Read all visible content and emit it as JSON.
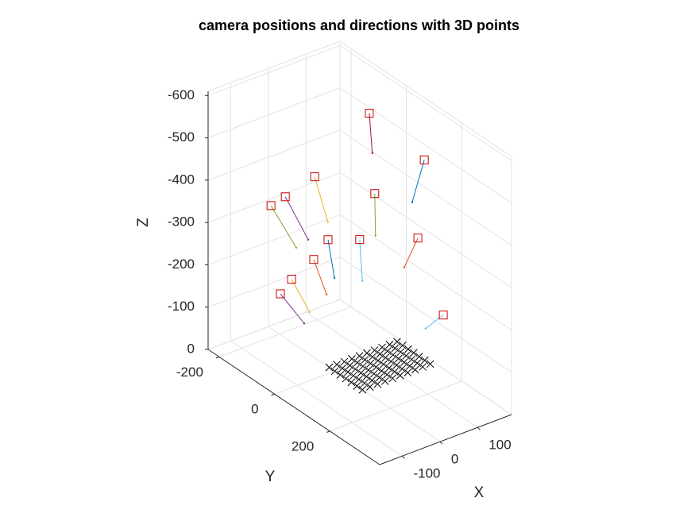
{
  "chart_data": {
    "type": "scatter3d",
    "title": "camera positions and directions with 3D points",
    "xlabel": "X",
    "ylabel": "Y",
    "zlabel": "Z",
    "xlim": [
      -160,
      190
    ],
    "ylim": [
      -240,
      380
    ],
    "zlim": [
      -610,
      0
    ],
    "z_reversed": true,
    "xticks": [
      -100,
      0,
      100
    ],
    "yticks": [
      -200,
      0,
      200
    ],
    "zticks": [
      -600,
      -500,
      -400,
      -300,
      -200,
      -100,
      0
    ],
    "grid": true,
    "camera_marker_color": "#d00000",
    "cameras": [
      {
        "color": "#A2142F",
        "position": [
          121,
          -40,
          -551
        ],
        "line_end": [
          129,
          -40,
          -454
        ]
      },
      {
        "color": "#0072BD",
        "position": [
          120,
          160,
          -529
        ],
        "line_end": [
          88,
          160,
          -440
        ]
      },
      {
        "color": "#EDB120",
        "position": [
          -24,
          -40,
          -450
        ],
        "line_end": [
          11,
          -40,
          -331
        ]
      },
      {
        "color": "#77AC30",
        "position": [
          62,
          60,
          -425
        ],
        "line_end": [
          64,
          60,
          -325
        ]
      },
      {
        "color": "#7E2F8E",
        "position": [
          -102,
          -40,
          -429
        ],
        "line_end": [
          -41,
          -40,
          -307
        ]
      },
      {
        "color": "#77AC30",
        "position": [
          -140,
          -40,
          -421
        ],
        "line_end": [
          -73,
          -40,
          -299
        ]
      },
      {
        "color": "#0072BD",
        "position": [
          -62,
          60,
          -358
        ],
        "line_end": [
          -45,
          60,
          -262
        ]
      },
      {
        "color": "#4DBEEE",
        "position": [
          22,
          60,
          -330
        ],
        "line_end": [
          29,
          60,
          -230
        ]
      },
      {
        "color": "#D95319",
        "position": [
          103,
          160,
          -350
        ],
        "line_end": [
          67,
          160,
          -293
        ]
      },
      {
        "color": "#D95319",
        "position": [
          -100,
          60,
          -324
        ],
        "line_end": [
          -66,
          60,
          -230
        ]
      },
      {
        "color": "#EDB120",
        "position": [
          -122,
          10,
          -263
        ],
        "line_end": [
          -74,
          10,
          -169
        ]
      },
      {
        "color": "#7E2F8E",
        "position": [
          -115,
          -40,
          -204
        ],
        "line_end": [
          -52,
          -40,
          -113
        ]
      },
      {
        "color": "#4DBEEE",
        "position": [
          97,
          260,
          -214
        ],
        "line_end": [
          50,
          260,
          -198
        ]
      }
    ],
    "points": {
      "color": "#000000",
      "x": [
        0,
        20,
        40,
        60,
        80,
        100,
        120,
        140,
        160,
        180,
        0,
        20,
        40,
        60,
        80,
        100,
        120,
        140,
        160,
        180,
        0,
        20,
        40,
        60,
        80,
        100,
        120,
        140,
        160,
        180,
        0,
        20,
        40,
        60,
        80,
        100,
        120,
        140,
        160,
        180,
        0,
        20,
        40,
        60,
        80,
        100,
        120,
        140,
        160,
        180,
        0,
        20,
        40,
        60,
        80,
        100,
        120,
        140,
        160,
        180,
        0,
        20,
        40,
        60,
        80,
        100,
        120,
        140,
        160,
        180
      ],
      "y": [
        -20,
        -20,
        -20,
        -20,
        -20,
        -20,
        -20,
        -20,
        -20,
        -20,
        0,
        0,
        0,
        0,
        0,
        0,
        0,
        0,
        0,
        0,
        20,
        20,
        20,
        20,
        20,
        20,
        20,
        20,
        20,
        20,
        40,
        40,
        40,
        40,
        40,
        40,
        40,
        40,
        40,
        40,
        60,
        60,
        60,
        60,
        60,
        60,
        60,
        60,
        60,
        60,
        80,
        80,
        80,
        80,
        80,
        80,
        80,
        80,
        80,
        80,
        100,
        100,
        100,
        100,
        100,
        100,
        100,
        100,
        100,
        100
      ],
      "z": [
        0,
        0,
        0,
        0,
        0,
        0,
        0,
        0,
        0,
        0,
        0,
        0,
        0,
        0,
        0,
        0,
        0,
        0,
        0,
        0,
        0,
        0,
        0,
        0,
        0,
        0,
        0,
        0,
        0,
        0,
        0,
        0,
        0,
        0,
        0,
        0,
        0,
        0,
        0,
        0,
        0,
        0,
        0,
        0,
        0,
        0,
        0,
        0,
        0,
        0,
        0,
        0,
        0,
        0,
        0,
        0,
        0,
        0,
        0,
        0,
        0,
        0,
        0,
        0,
        0,
        0,
        0,
        0,
        0,
        0
      ]
    }
  }
}
